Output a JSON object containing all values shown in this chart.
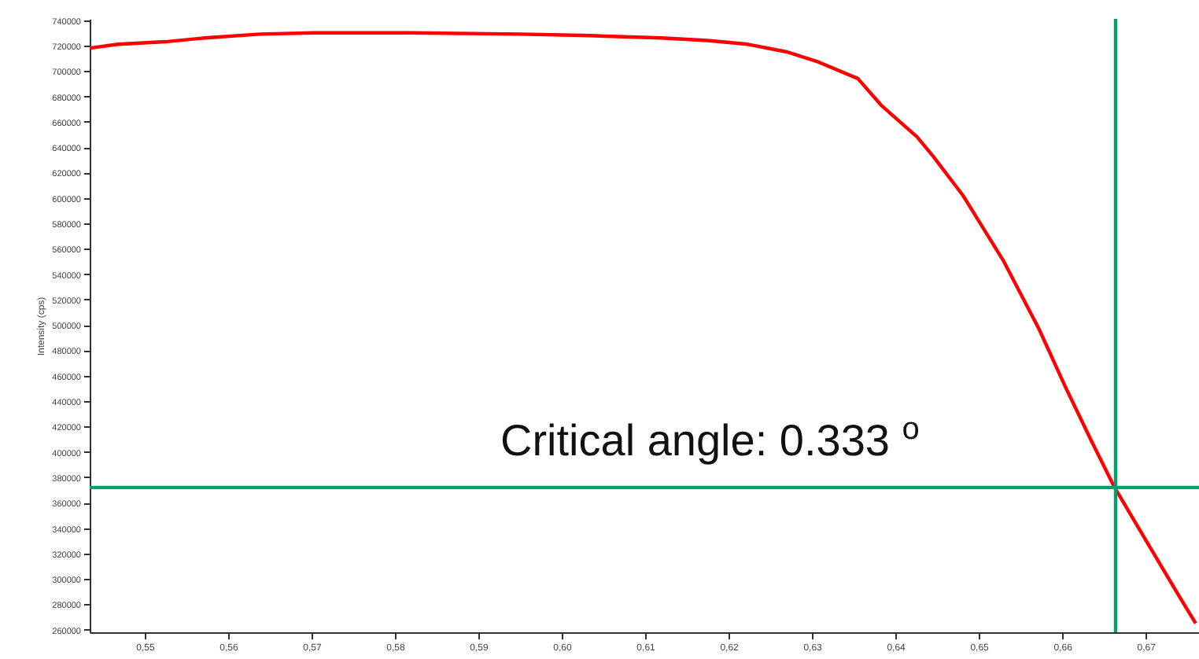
{
  "chart_data": {
    "type": "line",
    "ylabel": "Intensity (cps)",
    "annotations": [
      "Critical angle: 0.333 $^{o}$"
    ],
    "x": [
      0.5434,
      0.5468,
      0.5525,
      0.5572,
      0.5638,
      0.5704,
      0.5817,
      0.5949,
      0.6025,
      0.6119,
      0.6175,
      0.6223,
      0.627,
      0.6308,
      0.6355,
      0.6383,
      0.6426,
      0.6445,
      0.6481,
      0.653,
      0.6572,
      0.6604,
      0.6634,
      0.6662,
      0.6698,
      0.6736,
      0.676
    ],
    "series": [
      {
        "color": "#ff0000",
        "values": [
          718000,
          721000,
          723000,
          726000,
          729000,
          730000,
          730000,
          729000,
          728000,
          726000,
          724000,
          721000,
          715000,
          707000,
          694000,
          673000,
          648000,
          633000,
          602000,
          550000,
          497000,
          451000,
          410000,
          373000,
          333000,
          291000,
          265000
        ]
      }
    ],
    "xlim": [
      0.5434,
      0.6764
    ],
    "ylim": [
      258000,
      741000
    ],
    "xticks": [
      {
        "value": 0.55,
        "label": "0,55"
      },
      {
        "value": 0.56,
        "label": "0,56"
      },
      {
        "value": 0.57,
        "label": "0,57"
      },
      {
        "value": 0.58,
        "label": "0,58"
      },
      {
        "value": 0.59,
        "label": "0,59"
      },
      {
        "value": 0.6,
        "label": "0,60"
      },
      {
        "value": 0.61,
        "label": "0,61"
      },
      {
        "value": 0.62,
        "label": "0,62"
      },
      {
        "value": 0.63,
        "label": "0,63"
      },
      {
        "value": 0.64,
        "label": "0,64"
      },
      {
        "value": 0.65,
        "label": "0,65"
      },
      {
        "value": 0.66,
        "label": "0,66"
      },
      {
        "value": 0.67,
        "label": "0,67"
      }
    ],
    "yticks": [
      260000,
      280000,
      300000,
      320000,
      340000,
      360000,
      380000,
      400000,
      420000,
      440000,
      460000,
      480000,
      500000,
      520000,
      540000,
      560000,
      580000,
      600000,
      620000,
      640000,
      660000,
      680000,
      700000,
      720000,
      740000
    ],
    "ref_lines": [
      {
        "axis": "y",
        "value": 372000,
        "color": "#00a070"
      },
      {
        "axis": "x",
        "value": 0.6664,
        "color": "#00a070"
      }
    ],
    "grid": false,
    "marker": "none",
    "line_style": "solid"
  }
}
